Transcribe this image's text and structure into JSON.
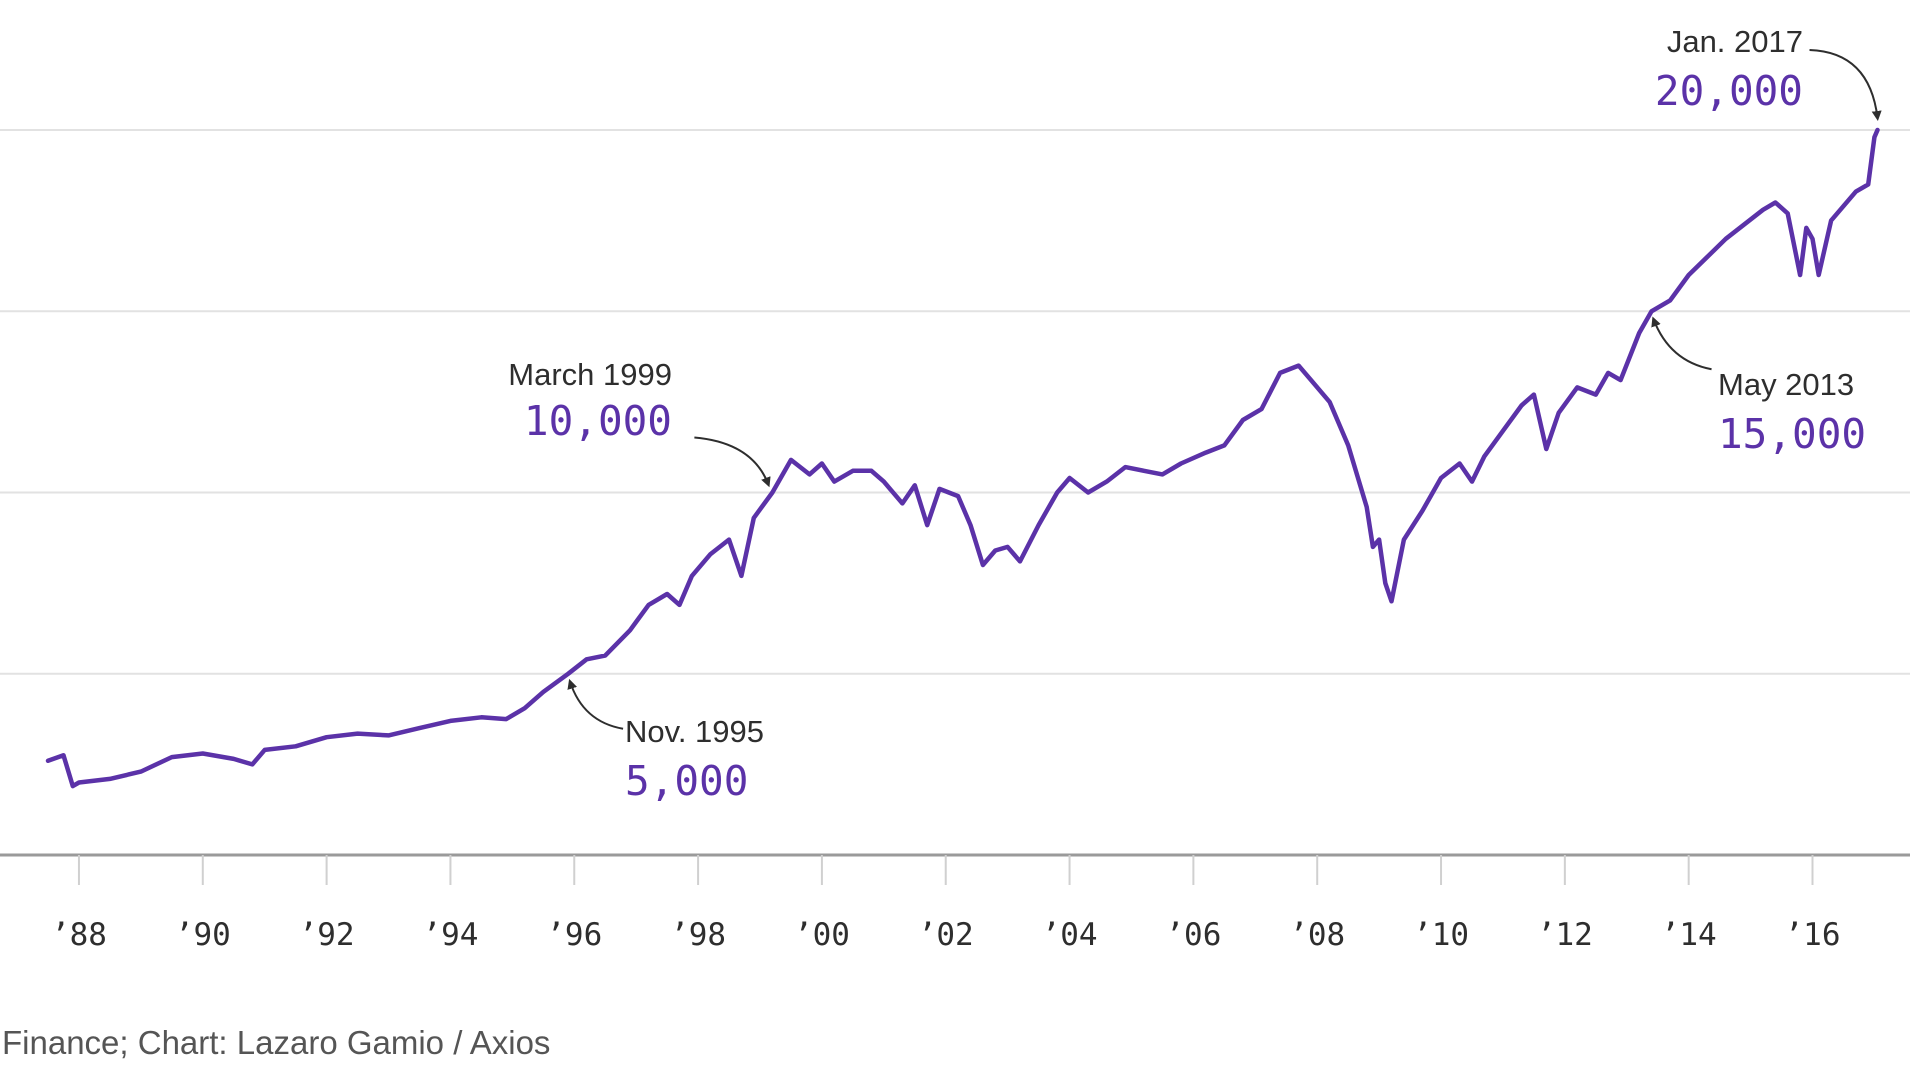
{
  "source": "Finance; Chart: Lazaro Gamio / Axios",
  "colors": {
    "line": "#5b32a8",
    "grid": "#e2e2e2",
    "axis": "#9a9a9a",
    "text": "#2e2e2e",
    "annotation_value": "#5b32a8"
  },
  "chart_data": {
    "type": "line",
    "title": "",
    "xlabel": "",
    "ylabel": "",
    "x_tick_labels": [
      "’88",
      "’90",
      "’92",
      "’94",
      "’96",
      "’98",
      "’00",
      "’02",
      "’04",
      "’06",
      "’08",
      "’10",
      "’12",
      "’14",
      "’16"
    ],
    "x_tick_years": [
      1988,
      1990,
      1992,
      1994,
      1996,
      1998,
      2000,
      2002,
      2004,
      2006,
      2008,
      2010,
      2012,
      2014,
      2016
    ],
    "xlim": [
      1987.5,
      2017.3
    ],
    "ylim": [
      0,
      20000
    ],
    "gridlines_y": [
      5000,
      10000,
      15000,
      20000
    ],
    "grid": true,
    "series": [
      {
        "x": [
          1987.5,
          1987.75,
          1987.9,
          1988.0,
          1988.5,
          1989.0,
          1989.5,
          1990.0,
          1990.5,
          1990.8,
          1991.0,
          1991.5,
          1992.0,
          1992.5,
          1993.0,
          1993.5,
          1994.0,
          1994.5,
          1994.9,
          1995.2,
          1995.5,
          1995.9,
          1996.2,
          1996.5,
          1996.9,
          1997.2,
          1997.5,
          1997.7,
          1997.9,
          1998.2,
          1998.5,
          1998.7,
          1998.9,
          1999.2,
          1999.5,
          1999.8,
          2000.0,
          2000.2,
          2000.5,
          2000.8,
          2001.0,
          2001.3,
          2001.5,
          2001.7,
          2001.9,
          2002.2,
          2002.4,
          2002.6,
          2002.8,
          2003.0,
          2003.2,
          2003.5,
          2003.8,
          2004.0,
          2004.3,
          2004.6,
          2004.9,
          2005.2,
          2005.5,
          2005.8,
          2006.2,
          2006.5,
          2006.8,
          2007.1,
          2007.4,
          2007.7,
          2007.9,
          2008.2,
          2008.5,
          2008.8,
          2008.9,
          2009.0,
          2009.1,
          2009.2,
          2009.4,
          2009.7,
          2010.0,
          2010.3,
          2010.5,
          2010.7,
          2011.0,
          2011.3,
          2011.5,
          2011.7,
          2011.9,
          2012.2,
          2012.5,
          2012.7,
          2012.9,
          2013.2,
          2013.4,
          2013.7,
          2014.0,
          2014.3,
          2014.6,
          2014.9,
          2015.2,
          2015.4,
          2015.6,
          2015.8,
          2015.9,
          2016.0,
          2016.1,
          2016.3,
          2016.5,
          2016.7,
          2016.9,
          2017.0,
          2017.05
        ],
        "y": [
          2600,
          2750,
          1900,
          2000,
          2100,
          2300,
          2700,
          2800,
          2650,
          2500,
          2900,
          3000,
          3250,
          3350,
          3300,
          3500,
          3700,
          3800,
          3750,
          4050,
          4500,
          5000,
          5400,
          5500,
          6200,
          6900,
          7200,
          6900,
          7700,
          8300,
          8700,
          7700,
          9300,
          10000,
          10900,
          10500,
          10800,
          10300,
          10600,
          10600,
          10300,
          9700,
          10200,
          9100,
          10100,
          9900,
          9100,
          8000,
          8400,
          8500,
          8100,
          9100,
          10000,
          10400,
          10000,
          10300,
          10700,
          10600,
          10500,
          10800,
          11100,
          11300,
          12000,
          12300,
          13300,
          13500,
          13100,
          12500,
          11300,
          9600,
          8500,
          8700,
          7500,
          7000,
          8700,
          9500,
          10400,
          10800,
          10300,
          11000,
          11700,
          12400,
          12700,
          11200,
          12200,
          12900,
          12700,
          13300,
          13100,
          14400,
          15000,
          15300,
          16000,
          16500,
          17000,
          17400,
          17800,
          18000,
          17700,
          16000,
          17300,
          17000,
          16000,
          17500,
          17900,
          18300,
          18500,
          19800,
          20000
        ]
      }
    ],
    "annotations": [
      {
        "date": "Nov. 1995",
        "value": "5,000",
        "x": 1995.9,
        "y": 5000
      },
      {
        "date": "March 1999",
        "value": "10,000",
        "x": 1999.2,
        "y": 10000
      },
      {
        "date": "May 2013",
        "value": "15,000",
        "x": 2013.4,
        "y": 15000
      },
      {
        "date": "Jan. 2017",
        "value": "20,000",
        "x": 2017.05,
        "y": 20000
      }
    ]
  }
}
